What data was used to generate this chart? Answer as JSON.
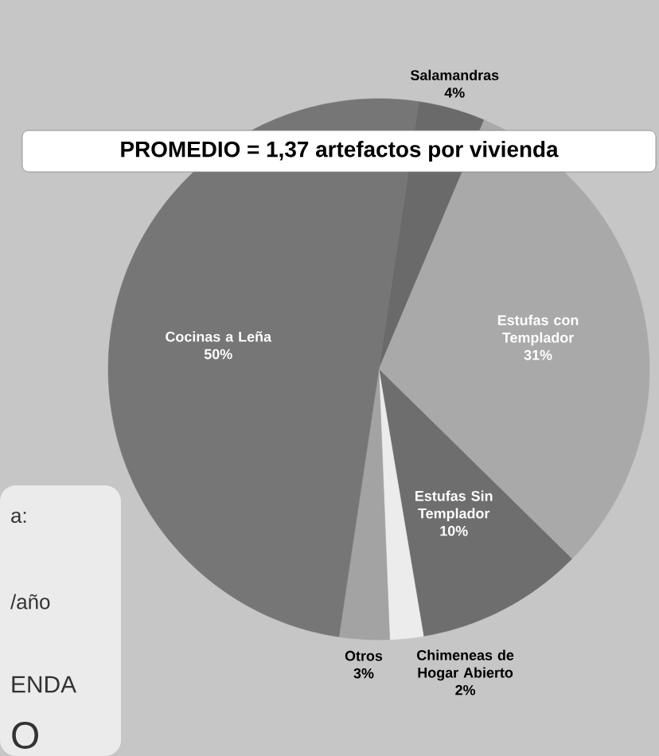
{
  "chart_data": {
    "type": "pie",
    "title": "PROMEDIO = 1,37 artefactos por vivienda",
    "categories": [
      "Salamandras",
      "Estufas con Templador",
      "Estufas Sin Templador",
      "Chimeneas de Hogar Abierto",
      "Otros",
      "Cocinas a Leña"
    ],
    "values": [
      4,
      31,
      10,
      2,
      3,
      50
    ],
    "value_labels": [
      "4%",
      "31%",
      "10%",
      "2%",
      "3%",
      "50%"
    ],
    "colors": [
      "#6a6a6a",
      "#a9a9a9",
      "#6e6e6e",
      "#ececec",
      "#a3a3a3",
      "#767676"
    ],
    "annotations": [
      "a:",
      "/año",
      "ENDA",
      "O"
    ]
  }
}
